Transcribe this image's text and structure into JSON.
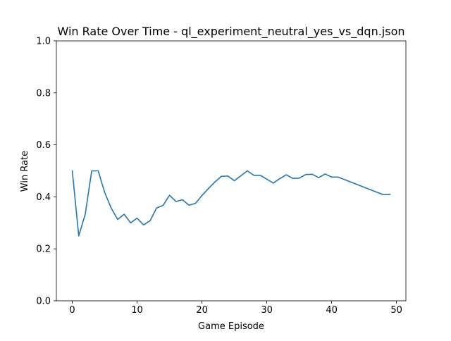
{
  "chart_data": {
    "type": "line",
    "title": "Win Rate Over Time - ql_experiment_neutral_yes_vs_dqn.json",
    "xlabel": "Game Episode",
    "ylabel": "Win Rate",
    "xlim": [
      -2.45,
      51.45
    ],
    "ylim": [
      0.0,
      1.0
    ],
    "xticks": [
      0,
      10,
      20,
      30,
      40,
      50
    ],
    "yticks": [
      0.0,
      0.2,
      0.4,
      0.6,
      0.8,
      1.0
    ],
    "xtick_labels": [
      "0",
      "10",
      "20",
      "30",
      "40",
      "50"
    ],
    "ytick_labels": [
      "0.0",
      "0.2",
      "0.4",
      "0.6",
      "0.8",
      "1.0"
    ],
    "grid": false,
    "series": [
      {
        "name": "Win Rate",
        "color": "#1f77b4",
        "x": [
          0,
          1,
          2,
          3,
          4,
          5,
          6,
          7,
          8,
          9,
          10,
          11,
          12,
          13,
          14,
          15,
          16,
          17,
          18,
          19,
          20,
          21,
          22,
          23,
          24,
          25,
          26,
          27,
          28,
          29,
          30,
          31,
          32,
          33,
          34,
          35,
          36,
          37,
          38,
          39,
          40,
          41,
          48,
          49
        ],
        "values": [
          0.5,
          0.25,
          0.333,
          0.5,
          0.5,
          0.417,
          0.357,
          0.313,
          0.333,
          0.3,
          0.318,
          0.292,
          0.308,
          0.357,
          0.367,
          0.406,
          0.382,
          0.389,
          0.368,
          0.375,
          0.405,
          0.432,
          0.457,
          0.479,
          0.48,
          0.462,
          0.481,
          0.5,
          0.483,
          0.483,
          0.468,
          0.453,
          0.47,
          0.485,
          0.471,
          0.472,
          0.486,
          0.487,
          0.474,
          0.488,
          0.476,
          0.476,
          0.408,
          0.41
        ]
      }
    ]
  }
}
